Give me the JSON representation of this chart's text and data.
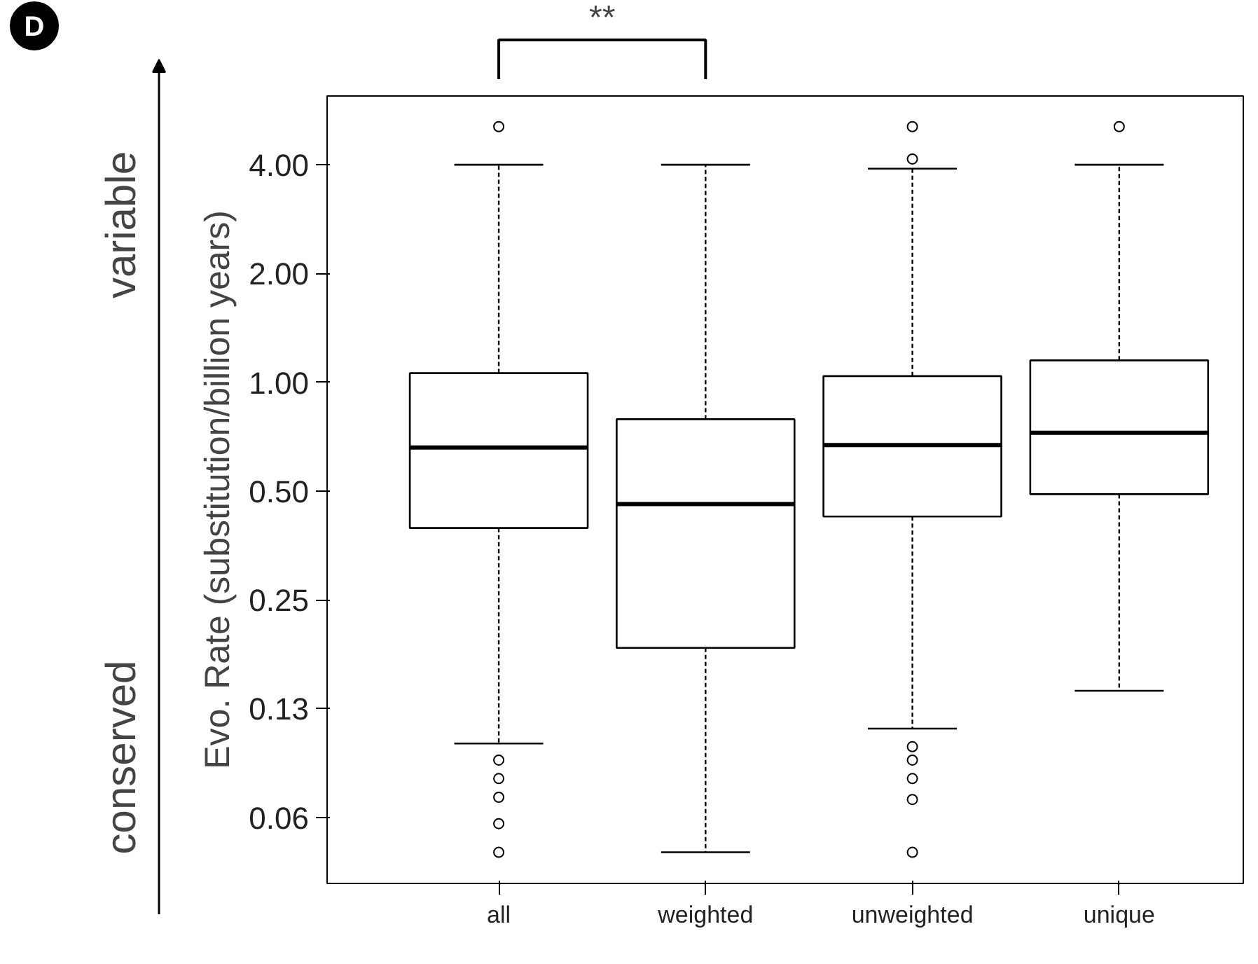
{
  "chart_data": {
    "type": "box",
    "categories": [
      "all",
      "weighted",
      "unweighted",
      "unique"
    ],
    "boxes": [
      {
        "low": 0.1,
        "q1": 0.395,
        "median": 0.66,
        "q3": 1.06,
        "high": 4.0,
        "outliers": [
          5.1,
          0.09,
          0.08,
          0.071,
          0.06,
          0.05
        ]
      },
      {
        "low": 0.05,
        "q1": 0.184,
        "median": 0.46,
        "q3": 0.79,
        "high": 4.0
      },
      {
        "low": 0.11,
        "q1": 0.425,
        "median": 0.67,
        "q3": 1.04,
        "high": 3.9,
        "outliers": [
          5.1,
          4.15,
          0.098,
          0.09,
          0.08,
          0.07,
          0.05
        ]
      },
      {
        "low": 0.14,
        "q1": 0.49,
        "median": 0.725,
        "q3": 1.15,
        "high": 4.0,
        "outliers": [
          5.1
        ]
      }
    ],
    "ylabel": "Evo. Rate (substitution/billion years)",
    "log": true,
    "grid": false,
    "color": "#000000",
    "ylim": [
      0.041,
      6.2
    ],
    "yticks": [
      {
        "value": 0.0625,
        "label": "0.06"
      },
      {
        "value": 0.125,
        "label": "0.13"
      },
      {
        "value": 0.25,
        "label": "0.25"
      },
      {
        "value": 0.5,
        "label": "0.50"
      },
      {
        "value": 1,
        "label": "1.00"
      },
      {
        "value": 2,
        "label": "2.00"
      },
      {
        "value": 4,
        "label": "4.00"
      }
    ],
    "annotations": [
      "D",
      "**",
      "variable",
      "conserved"
    ]
  }
}
